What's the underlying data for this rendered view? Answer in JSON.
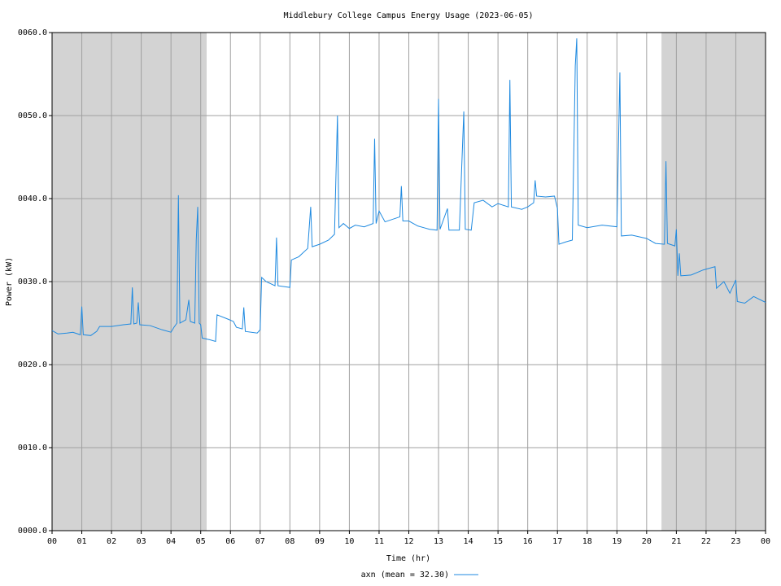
{
  "chart_data": {
    "type": "line",
    "title": "Middlebury College Campus Energy Usage (2023-06-05)",
    "x_label": "Time (hr)",
    "y_label": "Power (kW)",
    "x": [
      0.0,
      0.2,
      0.5,
      0.7,
      0.95,
      1.0,
      1.05,
      1.3,
      1.5,
      1.6,
      2.0,
      2.4,
      2.65,
      2.7,
      2.75,
      2.85,
      2.9,
      2.95,
      3.3,
      3.7,
      4.0,
      4.1,
      4.2,
      4.25,
      4.3,
      4.5,
      4.6,
      4.65,
      4.8,
      4.85,
      4.9,
      4.95,
      5.0,
      5.05,
      5.3,
      5.5,
      5.55,
      5.9,
      6.1,
      6.2,
      6.4,
      6.45,
      6.5,
      6.9,
      7.0,
      7.05,
      7.2,
      7.5,
      7.55,
      7.6,
      8.0,
      8.05,
      8.3,
      8.6,
      8.7,
      8.75,
      9.0,
      9.3,
      9.5,
      9.6,
      9.65,
      9.8,
      10.0,
      10.2,
      10.5,
      10.8,
      10.85,
      10.9,
      11.0,
      11.2,
      11.7,
      11.75,
      11.8,
      12.0,
      12.3,
      12.5,
      12.7,
      12.95,
      13.0,
      13.05,
      13.3,
      13.35,
      13.7,
      13.85,
      13.9,
      14.1,
      14.2,
      14.5,
      14.8,
      15.0,
      15.35,
      15.4,
      15.45,
      15.8,
      16.0,
      16.2,
      16.25,
      16.3,
      16.6,
      16.9,
      17.0,
      17.05,
      17.3,
      17.5,
      17.6,
      17.65,
      17.7,
      18.0,
      18.5,
      19.0,
      19.1,
      19.15,
      19.5,
      20.0,
      20.3,
      20.6,
      20.65,
      20.7,
      20.95,
      21.0,
      21.05,
      21.1,
      21.15,
      21.5,
      21.9,
      22.3,
      22.35,
      22.6,
      22.8,
      23.0,
      23.05,
      23.3,
      23.6,
      24.0
    ],
    "series": [
      {
        "name": "axn (mean = 32.30)",
        "color": "#1f8ae0",
        "values": [
          24.1,
          23.7,
          23.8,
          23.9,
          23.6,
          27.0,
          23.6,
          23.5,
          24.0,
          24.6,
          24.6,
          24.8,
          24.9,
          29.3,
          24.9,
          25.0,
          27.5,
          24.8,
          24.7,
          24.2,
          23.9,
          24.5,
          25.0,
          40.4,
          25.0,
          25.4,
          27.8,
          25.2,
          25.0,
          35.0,
          39.0,
          25.0,
          24.8,
          23.2,
          23.0,
          22.8,
          26.0,
          25.5,
          25.2,
          24.5,
          24.3,
          26.9,
          24.0,
          23.8,
          24.2,
          30.5,
          30.0,
          29.5,
          35.3,
          29.5,
          29.3,
          32.6,
          33.0,
          34.0,
          39.0,
          34.2,
          34.5,
          35.0,
          35.7,
          50.0,
          36.5,
          37.0,
          36.4,
          36.8,
          36.6,
          37.0,
          47.2,
          37.0,
          38.5,
          37.2,
          37.8,
          41.5,
          37.3,
          37.3,
          36.7,
          36.5,
          36.3,
          36.2,
          52.0,
          36.3,
          38.8,
          36.2,
          36.2,
          50.5,
          36.3,
          36.2,
          39.5,
          39.8,
          39.0,
          39.4,
          39.0,
          54.3,
          39.0,
          38.7,
          39.0,
          39.5,
          42.2,
          40.3,
          40.2,
          40.3,
          38.8,
          34.5,
          34.8,
          35.0,
          56.0,
          59.3,
          36.8,
          36.5,
          36.8,
          36.6,
          55.2,
          35.5,
          35.6,
          35.2,
          34.6,
          34.5,
          44.5,
          34.6,
          34.3,
          36.3,
          30.7,
          33.4,
          30.7,
          30.8,
          31.4,
          31.8,
          29.2,
          30.0,
          28.6,
          30.2,
          27.6,
          27.4,
          28.2,
          27.5
        ]
      }
    ],
    "shaded_regions": [
      [
        0,
        5.2
      ],
      [
        20.5,
        24
      ]
    ],
    "shade_color": "#d3d3d3",
    "xlim": [
      0,
      24
    ],
    "xticks": [
      {
        "value": 0,
        "label": "00"
      },
      {
        "value": 1,
        "label": "01"
      },
      {
        "value": 2,
        "label": "02"
      },
      {
        "value": 3,
        "label": "03"
      },
      {
        "value": 4,
        "label": "04"
      },
      {
        "value": 5,
        "label": "05"
      },
      {
        "value": 6,
        "label": "06"
      },
      {
        "value": 7,
        "label": "07"
      },
      {
        "value": 8,
        "label": "08"
      },
      {
        "value": 9,
        "label": "09"
      },
      10,
      11,
      12,
      13,
      14,
      15,
      16,
      17,
      18,
      19,
      20,
      21,
      22,
      23,
      {
        "value": 24,
        "label": "00"
      }
    ],
    "ylim": [
      0,
      60
    ],
    "yticks": [
      {
        "value": 0,
        "label": "0000.0"
      },
      {
        "value": 10,
        "label": "0010.0"
      },
      {
        "value": 20,
        "label": "0020.0"
      },
      {
        "value": 30,
        "label": "0030.0"
      },
      {
        "value": 40,
        "label": "0040.0"
      },
      {
        "value": 50,
        "label": "0050.0"
      },
      {
        "value": 60,
        "label": "0060.0"
      }
    ],
    "grid": true
  }
}
